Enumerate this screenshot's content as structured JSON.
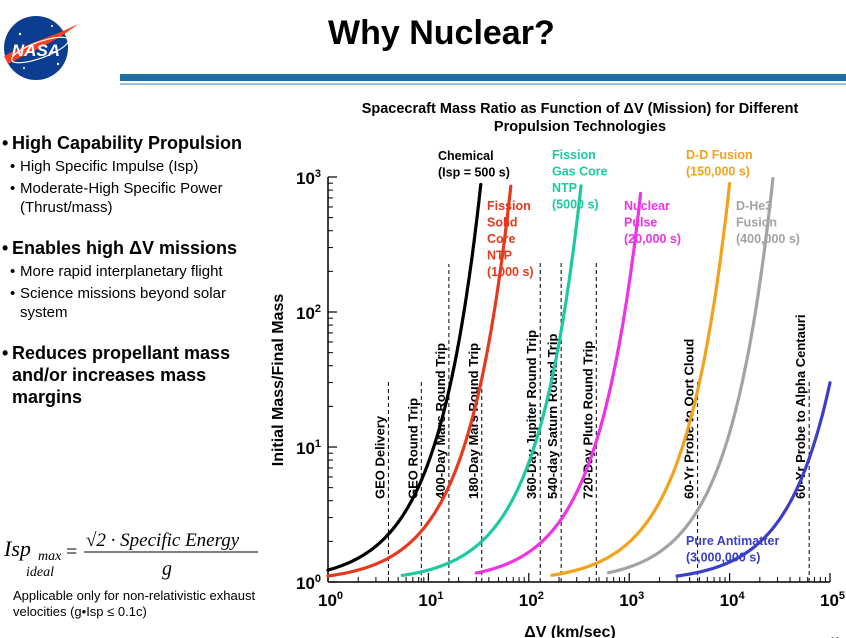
{
  "slide": {
    "title": "Why Nuclear?",
    "logo_text": "NASA"
  },
  "bullets": [
    {
      "main": "High Capability Propulsion",
      "subs": [
        "High Specific Impulse (Isp)",
        "Moderate-High Specific Power (Thrust/mass)"
      ]
    },
    {
      "main": "Enables high ΔV missions",
      "subs": [
        "More rapid interplanetary flight",
        "Science missions beyond solar system"
      ]
    },
    {
      "main": "Reduces propellant mass and/or increases mass margins",
      "subs": []
    }
  ],
  "formula": {
    "lhs": "Isp",
    "lhs_sub_top": "max",
    "lhs_sub_bottom": "ideal",
    "numerator": "√2 · Specific  Energy",
    "denominator": "g"
  },
  "note": "Applicable only for non-relativistic exhaust velocities (g•Isp ≤ 0.1c)",
  "colors": {
    "title_bar": "#1f6fa6",
    "chemical": "#000000",
    "solid_ntp": "#e53a1e",
    "gas_core": "#1ccaa0",
    "nuclear_pulse": "#ee33e6",
    "dd_fusion": "#f3a21c",
    "dhe3_fusion": "#a3a3a3",
    "antimatter": "#3a3fc9"
  },
  "chart_data": {
    "type": "line",
    "title": "Spacecraft Mass Ratio as Function of ΔV (Mission) for Different Propulsion Technologies",
    "xlabel": "ΔV (km/sec)",
    "ylabel": "Initial Mass/Final Mass",
    "x_scale": "log",
    "y_scale": "log",
    "xlim": [
      1,
      100000
    ],
    "ylim": [
      1,
      1000
    ],
    "x_ticks": [
      "10^0",
      "10^1",
      "10^2",
      "10^3",
      "10^4",
      "10^5"
    ],
    "y_ticks": [
      "10^0",
      "10^1",
      "10^2",
      "10^3"
    ],
    "grid": false,
    "series": [
      {
        "name": "Chemical (Isp = 500 s)",
        "label_lines": [
          "Chemical",
          "(Isp = 500 s)"
        ],
        "isp": 500,
        "x_max": 34,
        "color_key": "chemical"
      },
      {
        "name": "Fission Solid Core NTP (1000 s)",
        "label_lines": [
          "Fission",
          "Solid",
          "Core",
          "NTP",
          "(1000 s)"
        ],
        "isp": 1000,
        "x_max": 68,
        "color_key": "solid_ntp"
      },
      {
        "name": "Fission Gas Core NTP (5000 s)",
        "label_lines": [
          "Fission",
          "Gas Core",
          "NTP",
          "(5000 s)"
        ],
        "isp": 5000,
        "x_min": 5.5,
        "x_max": 340,
        "color_key": "gas_core"
      },
      {
        "name": "Nuclear Pulse (20,000 s)",
        "label_lines": [
          "Nuclear",
          "Pulse",
          "(20,000 s)"
        ],
        "isp": 20000,
        "x_min": 30,
        "x_max": 1300,
        "color_key": "nuclear_pulse"
      },
      {
        "name": "D-D Fusion (150,000 s)",
        "label_lines": [
          "D-D Fusion",
          "(150,000 s)"
        ],
        "isp": 150000,
        "x_min": 170,
        "x_max": 10000,
        "color_key": "dd_fusion"
      },
      {
        "name": "D-He3 Fusion (400,000 s)",
        "label_lines": [
          "D-He3",
          "Fusion",
          "(400,000 s)"
        ],
        "isp": 400000,
        "x_min": 620,
        "x_max": 27000,
        "color_key": "dhe3_fusion"
      },
      {
        "name": "Pure Antimatter (3,000,000 s)",
        "label_lines": [
          "Pure Antimatter",
          "(3,000,000 s)"
        ],
        "isp": 3000000,
        "x_min": 3000,
        "x_max": 100000,
        "color_key": "antimatter"
      }
    ],
    "missions": [
      {
        "label": "GEO Delivery",
        "dv": 4
      },
      {
        "label": "GEO Round Trip",
        "dv": 8.5
      },
      {
        "label": "400-Day Mars Round Trip",
        "dv": 16
      },
      {
        "label": "180-Day Mars Round Trip",
        "dv": 34
      },
      {
        "label": "360-Day Jupiter Round Trip",
        "dv": 130
      },
      {
        "label": "540-day Saturn Round Trip",
        "dv": 210
      },
      {
        "label": "720-Day Pluto Round Trip",
        "dv": 470
      },
      {
        "label": "60-Yr Probe to Oort Cloud",
        "dv": 4800
      },
      {
        "label": "60-Yr Probe to Alpha Centauri",
        "dv": 62000
      }
    ]
  },
  "page_number": "11"
}
